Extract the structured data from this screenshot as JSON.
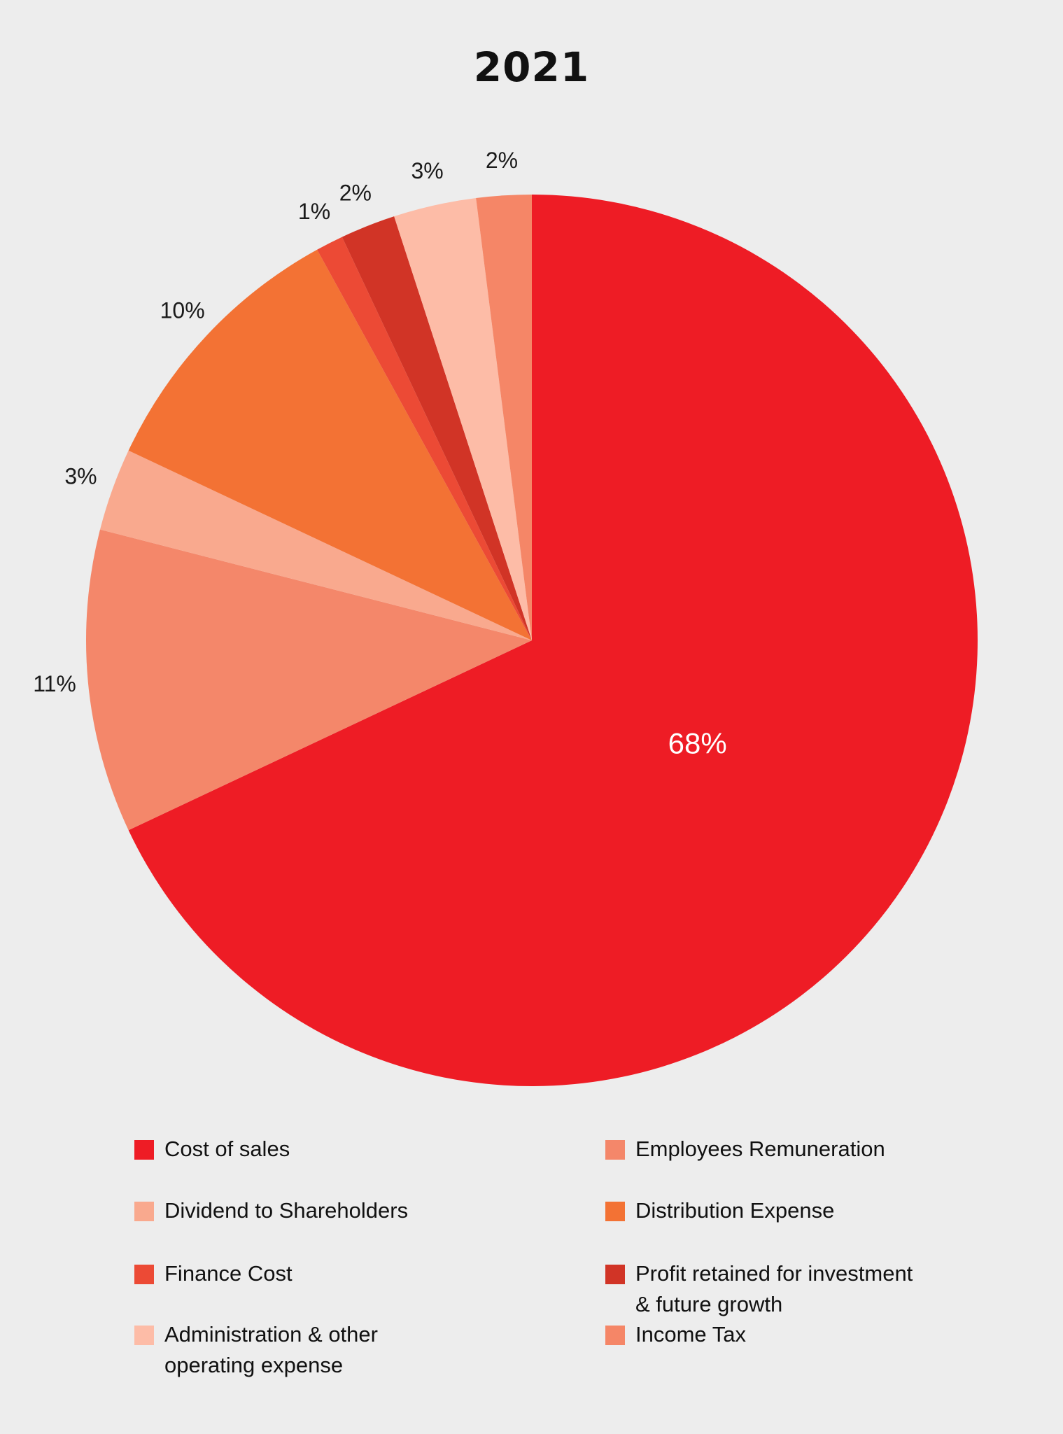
{
  "chart_data": {
    "type": "pie",
    "title": "2021",
    "slices": [
      {
        "name": "Cost of sales",
        "value": 68,
        "label": "68%",
        "color": "#ee1c25"
      },
      {
        "name": "Employees Remuneration",
        "value": 11,
        "label": "11%",
        "color": "#f4876a"
      },
      {
        "name": "Dividend to Shareholders",
        "value": 3,
        "label": "3%",
        "color": "#f9a98e"
      },
      {
        "name": "Distribution Expense",
        "value": 10,
        "label": "10%",
        "color": "#f37234"
      },
      {
        "name": "Finance Cost",
        "value": 1,
        "label": "1%",
        "color": "#ec4a35"
      },
      {
        "name": "Profit retained for investment & future growth",
        "value": 2,
        "label": "2%",
        "color": "#d13426"
      },
      {
        "name": "Administration & other operating expense",
        "value": 3,
        "label": "3%",
        "color": "#fdbca7"
      },
      {
        "name": "Income Tax",
        "value": 2,
        "label": "2%",
        "color": "#f58667"
      }
    ]
  },
  "legend": {
    "items": [
      {
        "label_lines": [
          "Cost of sales"
        ],
        "color": "#ee1c25"
      },
      {
        "label_lines": [
          "Employees Remuneration"
        ],
        "color": "#f4876a"
      },
      {
        "label_lines": [
          "Dividend to Shareholders"
        ],
        "color": "#f9a98e"
      },
      {
        "label_lines": [
          "Distribution Expense"
        ],
        "color": "#f37234"
      },
      {
        "label_lines": [
          "Finance Cost"
        ],
        "color": "#ec4a35"
      },
      {
        "label_lines": [
          "Profit retained for investment",
          "& future growth"
        ],
        "color": "#d13426"
      },
      {
        "label_lines": [
          "Administration & other",
          "operating expense"
        ],
        "color": "#fdbca7"
      },
      {
        "label_lines": [
          "Income Tax"
        ],
        "color": "#f58667"
      }
    ]
  }
}
